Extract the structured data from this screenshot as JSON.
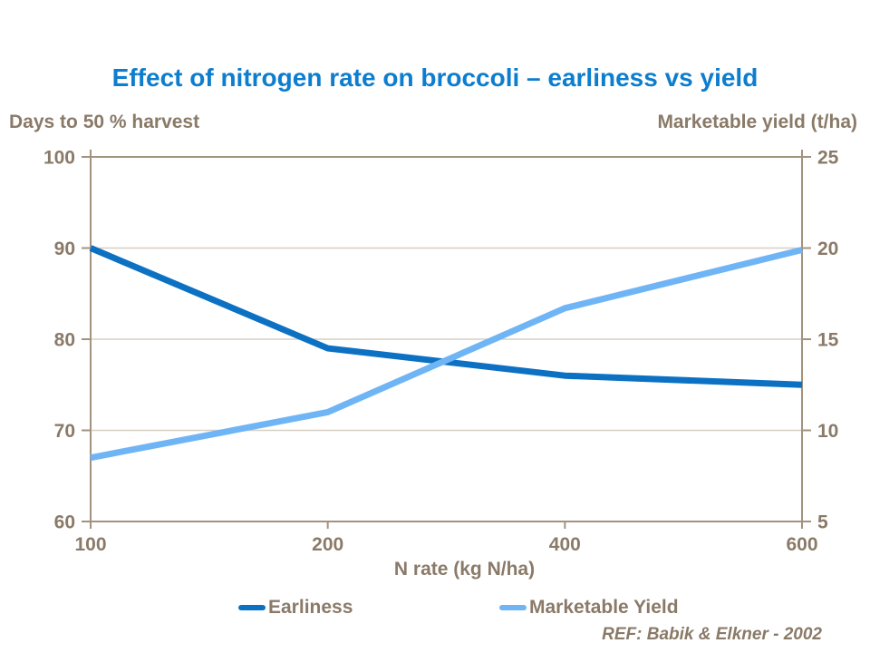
{
  "chart_data": {
    "type": "line",
    "title": "Effect of nitrogen rate on broccoli – earliness vs yield",
    "xlabel": "N rate (kg N/ha)",
    "ylabel_left": "Days to 50 % harvest",
    "ylabel_right": "Marketable yield (t/ha)",
    "categories": [
      100,
      200,
      400,
      600
    ],
    "x_tick_labels": [
      "100",
      "200",
      "400",
      "600"
    ],
    "series": [
      {
        "name": "Earliness",
        "axis": "left",
        "color": "#0c71c3",
        "values": [
          90,
          79,
          76,
          75
        ]
      },
      {
        "name": "Marketable Yield",
        "axis": "right",
        "color": "#6fb5f6",
        "values": [
          8.5,
          11,
          16.7,
          19.9
        ]
      }
    ],
    "ylim_left": [
      60,
      100
    ],
    "ylim_right": [
      5,
      25
    ],
    "left_ticks": [
      100,
      90,
      80,
      70,
      60
    ],
    "right_ticks": [
      25,
      20,
      15,
      10,
      5
    ],
    "grid": true,
    "legend_position": "bottom"
  },
  "legend": {
    "items": [
      {
        "label": "Earliness",
        "color": "#0c71c3"
      },
      {
        "label": "Marketable Yield",
        "color": "#6fb5f6"
      }
    ]
  },
  "footer": {
    "reference": "REF: Babik & Elkner - 2002"
  },
  "style": {
    "title_color": "#0d7dce",
    "label_color": "#8a7a68",
    "axis_color": "#a3937e",
    "grid_color": "#d7cfc3",
    "background": "#ffffff"
  }
}
